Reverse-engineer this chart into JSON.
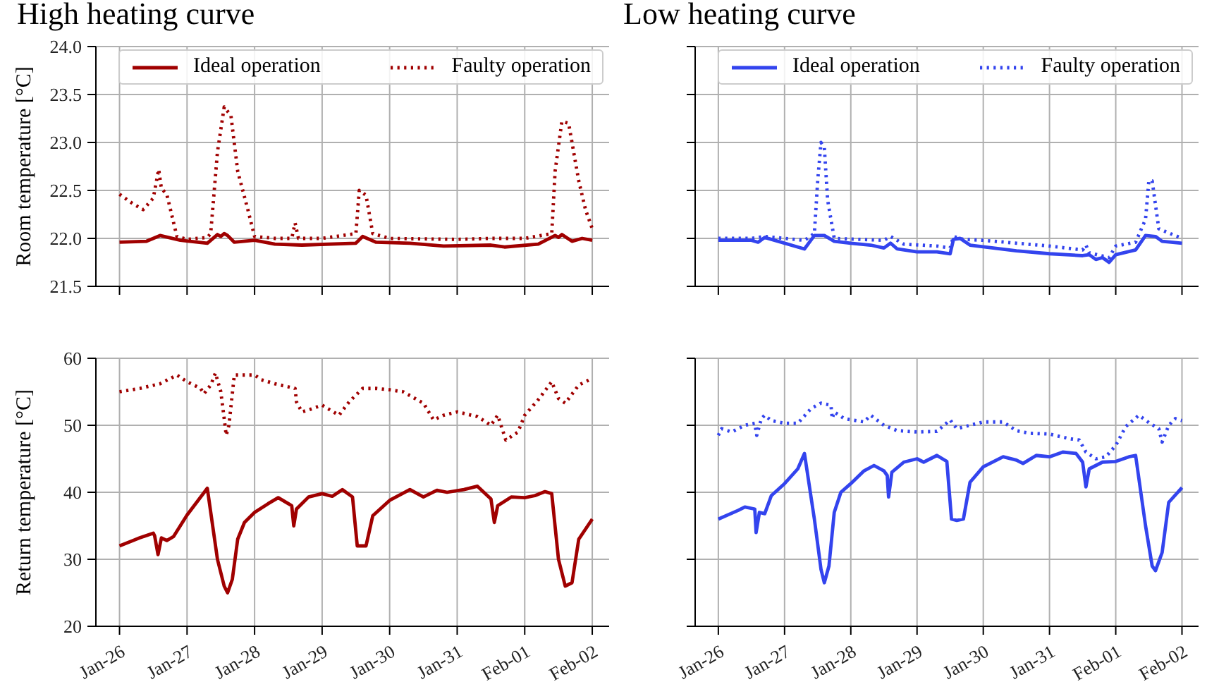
{
  "chart_data": [
    {
      "type": "line",
      "title": "High heating curve",
      "ylabel": "Room temperature [°C]",
      "xlim": [
        "--01-25T15:36",
        "--02-02T06:00"
      ],
      "xticks": [
        {
          "value": "--01-26",
          "label": null
        },
        {
          "value": "--01-27",
          "label": null
        },
        {
          "value": "--01-28",
          "label": null
        },
        {
          "value": "--01-29",
          "label": null
        },
        {
          "value": "--01-30",
          "label": null
        },
        {
          "value": "--01-31",
          "label": null
        },
        {
          "value": "--02-01",
          "label": null
        },
        {
          "value": "--02-02",
          "label": null
        }
      ],
      "ylim": [
        21.5,
        24
      ],
      "yticks": [
        {
          "value": 21.5,
          "label": "21.5"
        },
        {
          "value": 22,
          "label": "22.0"
        },
        {
          "value": 22.5,
          "label": "22.5"
        },
        {
          "value": 23,
          "label": "23.0"
        },
        {
          "value": 23.5,
          "label": "23.5"
        },
        {
          "value": 24,
          "label": "24.0"
        }
      ],
      "grid": true,
      "legend": "top",
      "tick_labels": "y",
      "series": [
        {
          "name": "Ideal operation",
          "color": "#a00000",
          "line_style": "solid",
          "x": [
            "--01-26T00:00",
            "--01-26T09:36",
            "--01-26T14:24",
            "--01-26T21:36",
            "--01-27T07:12",
            "--01-27T10:48",
            "--01-27T12:00",
            "--01-27T13:12",
            "--01-27T14:24",
            "--01-27T16:48",
            "--01-28T00:00",
            "--01-28T07:12",
            "--01-28T16:48",
            "--01-29T12:00",
            "--01-29T14:24",
            "--01-29T19:12",
            "--01-30T07:12",
            "--01-30T19:12",
            "--01-31T12:00",
            "--01-31T16:48",
            "--02-01T04:48",
            "--02-01T10:48",
            "--02-01T12:00",
            "--02-01T13:12",
            "--02-01T16:48",
            "--02-01T20:24",
            "--02-02T00:00"
          ],
          "values": [
            21.96,
            21.97,
            22.03,
            21.98,
            21.95,
            22.04,
            22.02,
            22.05,
            22.03,
            21.96,
            21.98,
            21.94,
            21.93,
            21.95,
            22.02,
            21.96,
            21.95,
            21.92,
            21.93,
            21.91,
            21.94,
            22.03,
            22.01,
            22.04,
            21.97,
            22.0,
            21.98
          ]
        },
        {
          "name": "Faulty operation",
          "color": "#a00000",
          "line_style": "dotted",
          "x": [
            "--01-26T00:00",
            "--01-26T04:48",
            "--01-26T08:24",
            "--01-26T12:00",
            "--01-26T13:55",
            "--01-26T14:53",
            "--01-26T16:48",
            "--01-26T20:24",
            "--01-27T00:00",
            "--01-27T07:12",
            "--01-27T08:24",
            "--01-27T10:48",
            "--01-27T13:12",
            "--01-27T15:36",
            "--01-27T18:00",
            "--01-27T21:36",
            "--01-28T00:00",
            "--01-28T07:12",
            "--01-28T13:12",
            "--01-28T14:24",
            "--01-28T15:36",
            "--01-29T00:00",
            "--01-29T12:00",
            "--01-29T13:12",
            "--01-29T15:36",
            "--01-29T18:00",
            "--01-30T00:00",
            "--01-31T00:00",
            "--01-31T12:00",
            "--02-01T00:00",
            "--02-01T09:36",
            "--02-01T10:48",
            "--02-01T13:12",
            "--02-01T15:36",
            "--02-01T19:12",
            "--02-01T21:36",
            "--02-02T00:00"
          ],
          "values": [
            22.46,
            22.36,
            22.3,
            22.42,
            22.72,
            22.52,
            22.46,
            22.02,
            21.99,
            22.01,
            22.05,
            22.9,
            23.37,
            23.28,
            22.7,
            22.3,
            22.02,
            22.0,
            22.0,
            22.16,
            22.0,
            22.0,
            22.05,
            22.5,
            22.45,
            22.05,
            22.0,
            21.99,
            22.0,
            22.0,
            22.05,
            22.7,
            23.22,
            23.2,
            22.6,
            22.3,
            22.1
          ]
        }
      ]
    },
    {
      "type": "line",
      "title": "Low heating curve",
      "xlim": [
        "--01-25T15:36",
        "--02-02T06:00"
      ],
      "xticks": [
        {
          "value": "--01-26",
          "label": null
        },
        {
          "value": "--01-27",
          "label": null
        },
        {
          "value": "--01-28",
          "label": null
        },
        {
          "value": "--01-29",
          "label": null
        },
        {
          "value": "--01-30",
          "label": null
        },
        {
          "value": "--01-31",
          "label": null
        },
        {
          "value": "--02-01",
          "label": null
        },
        {
          "value": "--02-02",
          "label": null
        }
      ],
      "ylim": [
        21.5,
        24
      ],
      "yticks": [
        {
          "value": 21.5,
          "label": null
        },
        {
          "value": 22,
          "label": null
        },
        {
          "value": 22.5,
          "label": null
        },
        {
          "value": 23,
          "label": null
        },
        {
          "value": 23.5,
          "label": null
        },
        {
          "value": 24,
          "label": null
        }
      ],
      "grid": true,
      "legend": "top",
      "tick_labels": false,
      "series": [
        {
          "name": "Ideal operation",
          "color": "#3344ee",
          "line_style": "solid",
          "x": [
            "--01-26T00:00",
            "--01-26T12:00",
            "--01-26T14:24",
            "--01-26T16:48",
            "--01-27T07:12",
            "--01-27T10:48",
            "--01-27T14:24",
            "--01-27T18:00",
            "--01-28T00:00",
            "--01-28T07:12",
            "--01-28T12:00",
            "--01-28T14:24",
            "--01-28T16:48",
            "--01-29T00:00",
            "--01-29T07:12",
            "--01-29T12:00",
            "--01-29T13:12",
            "--01-29T15:36",
            "--01-29T19:12",
            "--01-30T12:00",
            "--01-31T00:00",
            "--01-31T12:00",
            "--01-31T14:24",
            "--01-31T16:48",
            "--01-31T19:12",
            "--01-31T21:36",
            "--02-01T00:00",
            "--02-01T07:12",
            "--02-01T10:48",
            "--02-01T14:24",
            "--02-01T16:48",
            "--02-02T00:00"
          ],
          "values": [
            21.98,
            21.98,
            21.96,
            22.01,
            21.89,
            22.03,
            22.03,
            21.97,
            21.95,
            21.93,
            21.9,
            21.95,
            21.89,
            21.86,
            21.86,
            21.84,
            21.99,
            22.0,
            21.93,
            21.87,
            21.84,
            21.82,
            21.83,
            21.78,
            21.8,
            21.75,
            21.83,
            21.88,
            22.03,
            22.02,
            21.97,
            21.95
          ]
        },
        {
          "name": "Faulty operation",
          "color": "#3344ee",
          "line_style": "dotted",
          "x": [
            "--01-26T00:00",
            "--01-26T12:00",
            "--01-26T16:48",
            "--01-27T07:12",
            "--01-27T10:48",
            "--01-27T12:00",
            "--01-27T13:12",
            "--01-27T14:24",
            "--01-27T15:36",
            "--01-27T18:00",
            "--01-28T12:00",
            "--01-28T14:24",
            "--01-28T19:12",
            "--01-29T07:12",
            "--01-29T12:00",
            "--01-29T13:12",
            "--01-29T16:48",
            "--01-30T00:00",
            "--01-30T12:00",
            "--01-31T00:00",
            "--01-31T12:00",
            "--01-31T13:12",
            "--01-31T14:24",
            "--01-31T21:36",
            "--02-01T00:00",
            "--02-01T07:12",
            "--02-01T10:48",
            "--02-01T12:00",
            "--02-01T13:12",
            "--02-01T15:36",
            "--02-02T00:00"
          ],
          "values": [
            22.0,
            22.0,
            22.02,
            21.98,
            22.05,
            22.6,
            23.0,
            22.95,
            22.4,
            22.0,
            21.98,
            22.02,
            21.94,
            21.92,
            21.9,
            22.02,
            21.99,
            21.98,
            21.95,
            21.92,
            21.88,
            21.93,
            21.85,
            21.8,
            21.92,
            21.96,
            22.2,
            22.6,
            22.6,
            22.1,
            22.0
          ]
        }
      ]
    },
    {
      "type": "line",
      "ylabel": "Return temperature [°C]",
      "xlim": [
        "--01-25T15:36",
        "--02-02T06:00"
      ],
      "xticks": [
        {
          "value": "--01-26",
          "label": "Jan-26"
        },
        {
          "value": "--01-27",
          "label": "Jan-27"
        },
        {
          "value": "--01-28",
          "label": "Jan-28"
        },
        {
          "value": "--01-29",
          "label": "Jan-29"
        },
        {
          "value": "--01-30",
          "label": "Jan-30"
        },
        {
          "value": "--01-31",
          "label": "Jan-31"
        },
        {
          "value": "--02-01",
          "label": "Feb-01"
        },
        {
          "value": "--02-02",
          "label": "Feb-02"
        }
      ],
      "ylim": [
        20,
        60
      ],
      "yticks": [
        20,
        30,
        40,
        50,
        60
      ],
      "grid": true,
      "series": [
        {
          "color": "#a00000",
          "line_style": "solid",
          "x": [
            "--01-26T00:00",
            "--01-26T07:12",
            "--01-26T12:00",
            "--01-26T12:29",
            "--01-26T13:41",
            "--01-26T14:53",
            "--01-26T16:48",
            "--01-26T19:12",
            "--01-26T21:36",
            "--01-27T00:00",
            "--01-27T07:12",
            "--01-27T10:48",
            "--01-27T13:12",
            "--01-27T14:24",
            "--01-27T16:05",
            "--01-27T18:00",
            "--01-27T20:24",
            "--01-28T00:00",
            "--01-28T04:48",
            "--01-28T08:24",
            "--01-28T12:00",
            "--01-28T13:12",
            "--01-28T13:55",
            "--01-28T14:53",
            "--01-28T19:12",
            "--01-29T00:00",
            "--01-29T03:36",
            "--01-29T07:12",
            "--01-29T10:48",
            "--01-29T12:29",
            "--01-29T15:36",
            "--01-29T18:00",
            "--01-30T00:00",
            "--01-30T07:12",
            "--01-30T12:00",
            "--01-30T16:48",
            "--01-30T20:24",
            "--01-31T02:24",
            "--01-31T07:12",
            "--01-31T12:00",
            "--01-31T13:12",
            "--01-31T14:24",
            "--01-31T19:12",
            "--02-01T00:00",
            "--02-01T03:36",
            "--02-01T07:12",
            "--02-01T09:36",
            "--02-01T12:00",
            "--02-01T14:24",
            "--02-01T16:48",
            "--02-01T19:12",
            "--02-02T00:00"
          ],
          "values": [
            32,
            33.2,
            33.9,
            33.5,
            30.7,
            33.2,
            32.8,
            33.4,
            35,
            36.6,
            40.6,
            30,
            26,
            25,
            27,
            33,
            35.5,
            37,
            38.3,
            39.2,
            38.3,
            38,
            35,
            37.5,
            39.3,
            39.8,
            39.4,
            40.4,
            39.3,
            32,
            32,
            36.5,
            38.8,
            40.4,
            39.3,
            40.3,
            40,
            40.4,
            40.9,
            39,
            35.5,
            38,
            39.3,
            39.2,
            39.5,
            40.1,
            39.8,
            30,
            26,
            26.5,
            33,
            36
          ]
        },
        {
          "color": "#a00000",
          "line_style": "dotted",
          "x": [
            "--01-26T00:00",
            "--01-26T07:12",
            "--01-26T14:24",
            "--01-26T20:24",
            "--01-27T00:00",
            "--01-27T04:48",
            "--01-27T06:00",
            "--01-27T08:24",
            "--01-27T10:05",
            "--01-27T12:00",
            "--01-27T13:12",
            "--01-27T13:55",
            "--01-27T14:53",
            "--01-27T16:48",
            "--01-28T00:00",
            "--01-28T02:24",
            "--01-28T07:12",
            "--01-28T14:24",
            "--01-28T14:53",
            "--01-28T16:48",
            "--01-28T19:12",
            "--01-29T00:00",
            "--01-29T06:00",
            "--01-29T09:36",
            "--01-29T14:24",
            "--01-29T19:12",
            "--01-30T00:00",
            "--01-30T04:48",
            "--01-30T12:00",
            "--01-30T15:36",
            "--01-30T19:12",
            "--01-31T00:00",
            "--01-31T07:12",
            "--01-31T12:00",
            "--01-31T14:24",
            "--01-31T17:17",
            "--01-31T21:36",
            "--02-01T00:00",
            "--02-01T04:48",
            "--02-01T09:36",
            "--02-01T12:00",
            "--02-01T14:24",
            "--02-01T19:12",
            "--02-02T00:00"
          ],
          "values": [
            55,
            55.5,
            56.2,
            57.5,
            56.5,
            55.5,
            54.7,
            56,
            57.8,
            55,
            51,
            48.5,
            50,
            57.5,
            57.5,
            56.8,
            56.2,
            55.5,
            53.5,
            52,
            52.3,
            53,
            51.5,
            53.5,
            55.5,
            55.5,
            55.3,
            55,
            53.3,
            50.8,
            51.5,
            52,
            51.3,
            50,
            51.5,
            47.8,
            49,
            51.5,
            53.8,
            56.5,
            54,
            53.3,
            56,
            57
          ]
        }
      ]
    },
    {
      "type": "line",
      "xlim": [
        "--01-25T15:36",
        "--02-02T06:00"
      ],
      "xticks": [
        {
          "value": "--01-26",
          "label": "Jan-26"
        },
        {
          "value": "--01-27",
          "label": "Jan-27"
        },
        {
          "value": "--01-28",
          "label": "Jan-28"
        },
        {
          "value": "--01-29",
          "label": "Jan-29"
        },
        {
          "value": "--01-30",
          "label": "Jan-30"
        },
        {
          "value": "--01-31",
          "label": "Jan-31"
        },
        {
          "value": "--02-01",
          "label": "Feb-01"
        },
        {
          "value": "--02-02",
          "label": "Feb-02"
        }
      ],
      "ylim": [
        20,
        60
      ],
      "yticks": [
        {
          "value": 20,
          "label": null
        },
        {
          "value": 30,
          "label": null
        },
        {
          "value": 40,
          "label": null
        },
        {
          "value": 50,
          "label": null
        },
        {
          "value": 60,
          "label": null
        }
      ],
      "grid": true,
      "tick_labels": "x",
      "series": [
        {
          "color": "#3344ee",
          "line_style": "solid",
          "x": [
            "--01-26T00:00",
            "--01-26T07:12",
            "--01-26T09:36",
            "--01-26T13:12",
            "--01-26T13:41",
            "--01-26T14:53",
            "--01-26T16:48",
            "--01-26T19:12",
            "--01-27T00:00",
            "--01-27T04:48",
            "--01-27T07:12",
            "--01-27T10:48",
            "--01-27T13:12",
            "--01-27T14:24",
            "--01-27T16:05",
            "--01-27T18:00",
            "--01-27T20:24",
            "--01-28T00:00",
            "--01-28T04:48",
            "--01-28T08:24",
            "--01-28T12:00",
            "--01-28T13:12",
            "--01-28T13:41",
            "--01-28T14:53",
            "--01-28T19:12",
            "--01-29T00:00",
            "--01-29T02:24",
            "--01-29T07:12",
            "--01-29T10:48",
            "--01-29T12:29",
            "--01-29T14:24",
            "--01-29T16:48",
            "--01-29T19:12",
            "--01-30T00:00",
            "--01-30T07:12",
            "--01-30T12:00",
            "--01-30T14:24",
            "--01-30T19:12",
            "--01-31T00:00",
            "--01-31T04:48",
            "--01-31T09:36",
            "--01-31T12:00",
            "--01-31T13:12",
            "--01-31T14:24",
            "--01-31T19:12",
            "--02-01T00:00",
            "--02-01T04:48",
            "--02-01T07:12",
            "--02-01T10:48",
            "--02-01T13:12",
            "--02-01T14:24",
            "--02-01T16:48",
            "--02-01T19:12",
            "--02-02T00:00"
          ],
          "values": [
            36,
            37.3,
            37.8,
            37.5,
            34,
            37,
            36.8,
            39.5,
            41.3,
            43.5,
            45.8,
            36,
            28.5,
            26.5,
            29,
            37,
            40,
            41.3,
            43.2,
            44,
            43.2,
            42.5,
            39.3,
            43,
            44.5,
            45,
            44.5,
            45.5,
            44.6,
            36,
            35.8,
            36,
            41.5,
            43.8,
            45.3,
            44.8,
            44.3,
            45.5,
            45.3,
            46,
            45.8,
            44.5,
            40.8,
            43.5,
            44.5,
            44.6,
            45.3,
            45.5,
            35,
            29,
            28.3,
            31,
            38.5,
            40.7
          ]
        },
        {
          "color": "#3344ee",
          "line_style": "dotted",
          "x": [
            "--01-26T00:00",
            "--01-26T01:12",
            "--01-26T04:48",
            "--01-26T09:36",
            "--01-26T13:12",
            "--01-26T13:55",
            "--01-26T15:36",
            "--01-26T16:48",
            "--01-26T19:12",
            "--01-27T00:00",
            "--01-27T04:48",
            "--01-27T09:36",
            "--01-27T13:12",
            "--01-27T16:48",
            "--01-27T17:17",
            "--01-27T18:00",
            "--01-27T21:36",
            "--01-28T04:48",
            "--01-28T07:12",
            "--01-28T12:00",
            "--01-28T16:48",
            "--01-29T00:00",
            "--01-29T07:12",
            "--01-29T12:00",
            "--01-29T14:24",
            "--01-29T19:12",
            "--01-30T00:00",
            "--01-30T07:12",
            "--01-30T12:00",
            "--01-30T16:48",
            "--01-31T00:00",
            "--01-31T07:12",
            "--01-31T10:48",
            "--01-31T13:12",
            "--01-31T16:48",
            "--01-31T20:24",
            "--02-01T00:00",
            "--02-01T03:36",
            "--02-01T08:24",
            "--02-01T12:00",
            "--02-01T15:36",
            "--02-01T16:48",
            "--02-01T19:12",
            "--02-01T21:36",
            "--02-02T00:00"
          ],
          "values": [
            48.5,
            49.5,
            49,
            50,
            50.3,
            48.5,
            51,
            51.5,
            50.7,
            50.3,
            50.3,
            52.5,
            53.3,
            53,
            51,
            52,
            51,
            50.5,
            51.5,
            50,
            49.2,
            49,
            49.1,
            50.8,
            49.5,
            50,
            50.5,
            50.5,
            49.2,
            48.8,
            48.7,
            48,
            47.8,
            46,
            45,
            45.3,
            47,
            49.8,
            51.5,
            50.4,
            49.5,
            47.5,
            50,
            51,
            50.7
          ]
        }
      ]
    }
  ]
}
